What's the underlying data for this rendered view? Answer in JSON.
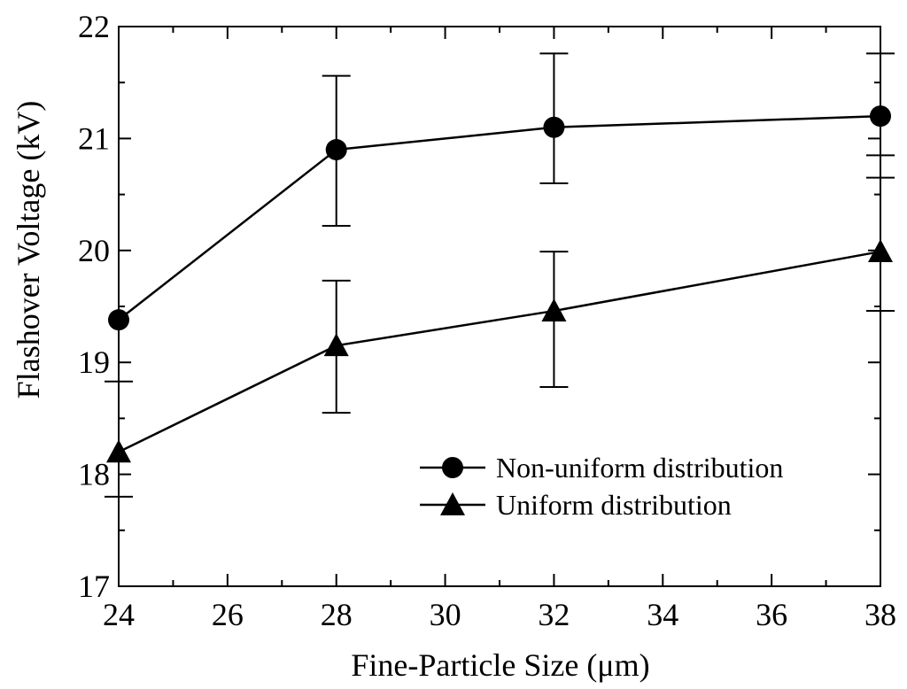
{
  "chart_data": {
    "type": "line",
    "xlabel": "Fine-Particle Size (μm)",
    "ylabel": "Flashover Voltage (kV)",
    "xlim": [
      24,
      38
    ],
    "ylim": [
      17,
      22
    ],
    "x_ticks": [
      24,
      26,
      28,
      30,
      32,
      34,
      36,
      38
    ],
    "y_ticks": [
      17,
      18,
      19,
      20,
      21,
      22
    ],
    "x_tick_labels": [
      "24",
      "26",
      "28",
      "30",
      "32",
      "34",
      "36",
      "38"
    ],
    "y_tick_labels": [
      "17",
      "18",
      "19",
      "20",
      "21",
      "22"
    ],
    "grid": false,
    "legend_position": "bottom-right",
    "series": [
      {
        "name": "Non-uniform distribution",
        "marker": "circle",
        "color": "#000000",
        "points": [
          {
            "x": 24,
            "y": 19.38
          },
          {
            "x": 28,
            "y": 20.9,
            "err_low": 20.22,
            "err_high": 21.56
          },
          {
            "x": 32,
            "y": 21.1,
            "err_low": 20.6,
            "err_high": 21.76
          },
          {
            "x": 38,
            "y": 21.2,
            "err_low": 20.85,
            "err_high": 21.76
          }
        ]
      },
      {
        "name": "Uniform distribution",
        "marker": "triangle",
        "color": "#000000",
        "points": [
          {
            "x": 24,
            "y": 18.2,
            "err_low": 17.8,
            "err_high": 18.83
          },
          {
            "x": 28,
            "y": 19.15,
            "err_low": 18.55,
            "err_high": 19.73
          },
          {
            "x": 32,
            "y": 19.46,
            "err_low": 18.78,
            "err_high": 19.99
          },
          {
            "x": 38,
            "y": 19.99,
            "err_low": 19.46,
            "err_high": 20.65
          }
        ]
      }
    ]
  }
}
